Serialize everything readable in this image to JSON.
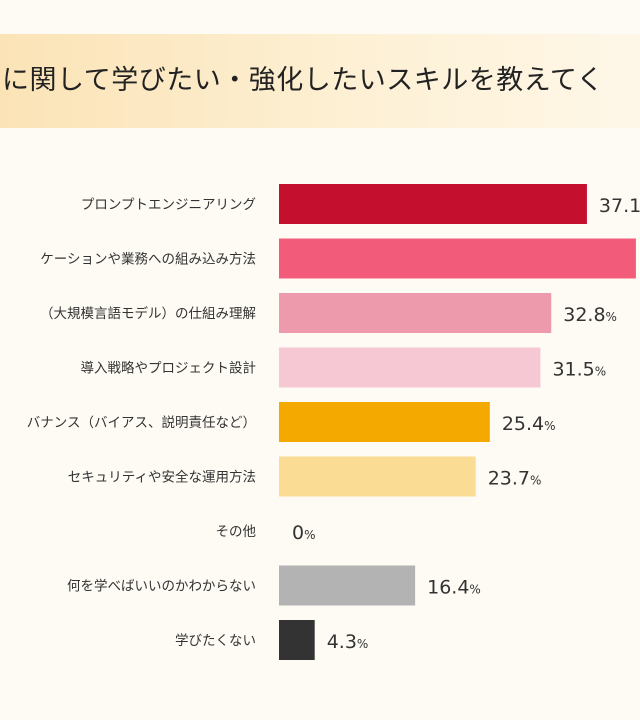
{
  "colors": {
    "background": "#fdfbf4",
    "title_band_start": "#fbe3b6",
    "title_band_end": "#fef7e8"
  },
  "chart_data": {
    "type": "bar",
    "orientation": "horizontal",
    "title": "に関して学びたい・強化したいスキルを教えてく",
    "unit": "%",
    "xlim": [
      0,
      45
    ],
    "grid": false,
    "categories": [
      "プロンプトエンジニアリング",
      "ケーションや業務への組み込み方法",
      "（大規模言語モデル）の仕組み理解",
      "導入戦略やプロジェクト設計",
      "バナンス（バイアス、説明責任など）",
      "セキュリティや安全な運用方法",
      "その他",
      "何を学べばいいのかわからない",
      "学びたくない"
    ],
    "values": [
      37.1,
      43.0,
      32.8,
      31.5,
      25.4,
      23.7,
      0,
      16.4,
      4.3
    ],
    "value_labels": [
      "37.1",
      "",
      "32.8",
      "31.5",
      "25.4",
      "23.7",
      "0",
      "16.4",
      "4.3"
    ],
    "bar_colors": [
      "#c4102e",
      "#f25c7a",
      "#ed9aac",
      "#f5c8d4",
      "#f4a900",
      "#fbdc95",
      "#cccccc",
      "#b3b3b3",
      "#333333"
    ]
  }
}
